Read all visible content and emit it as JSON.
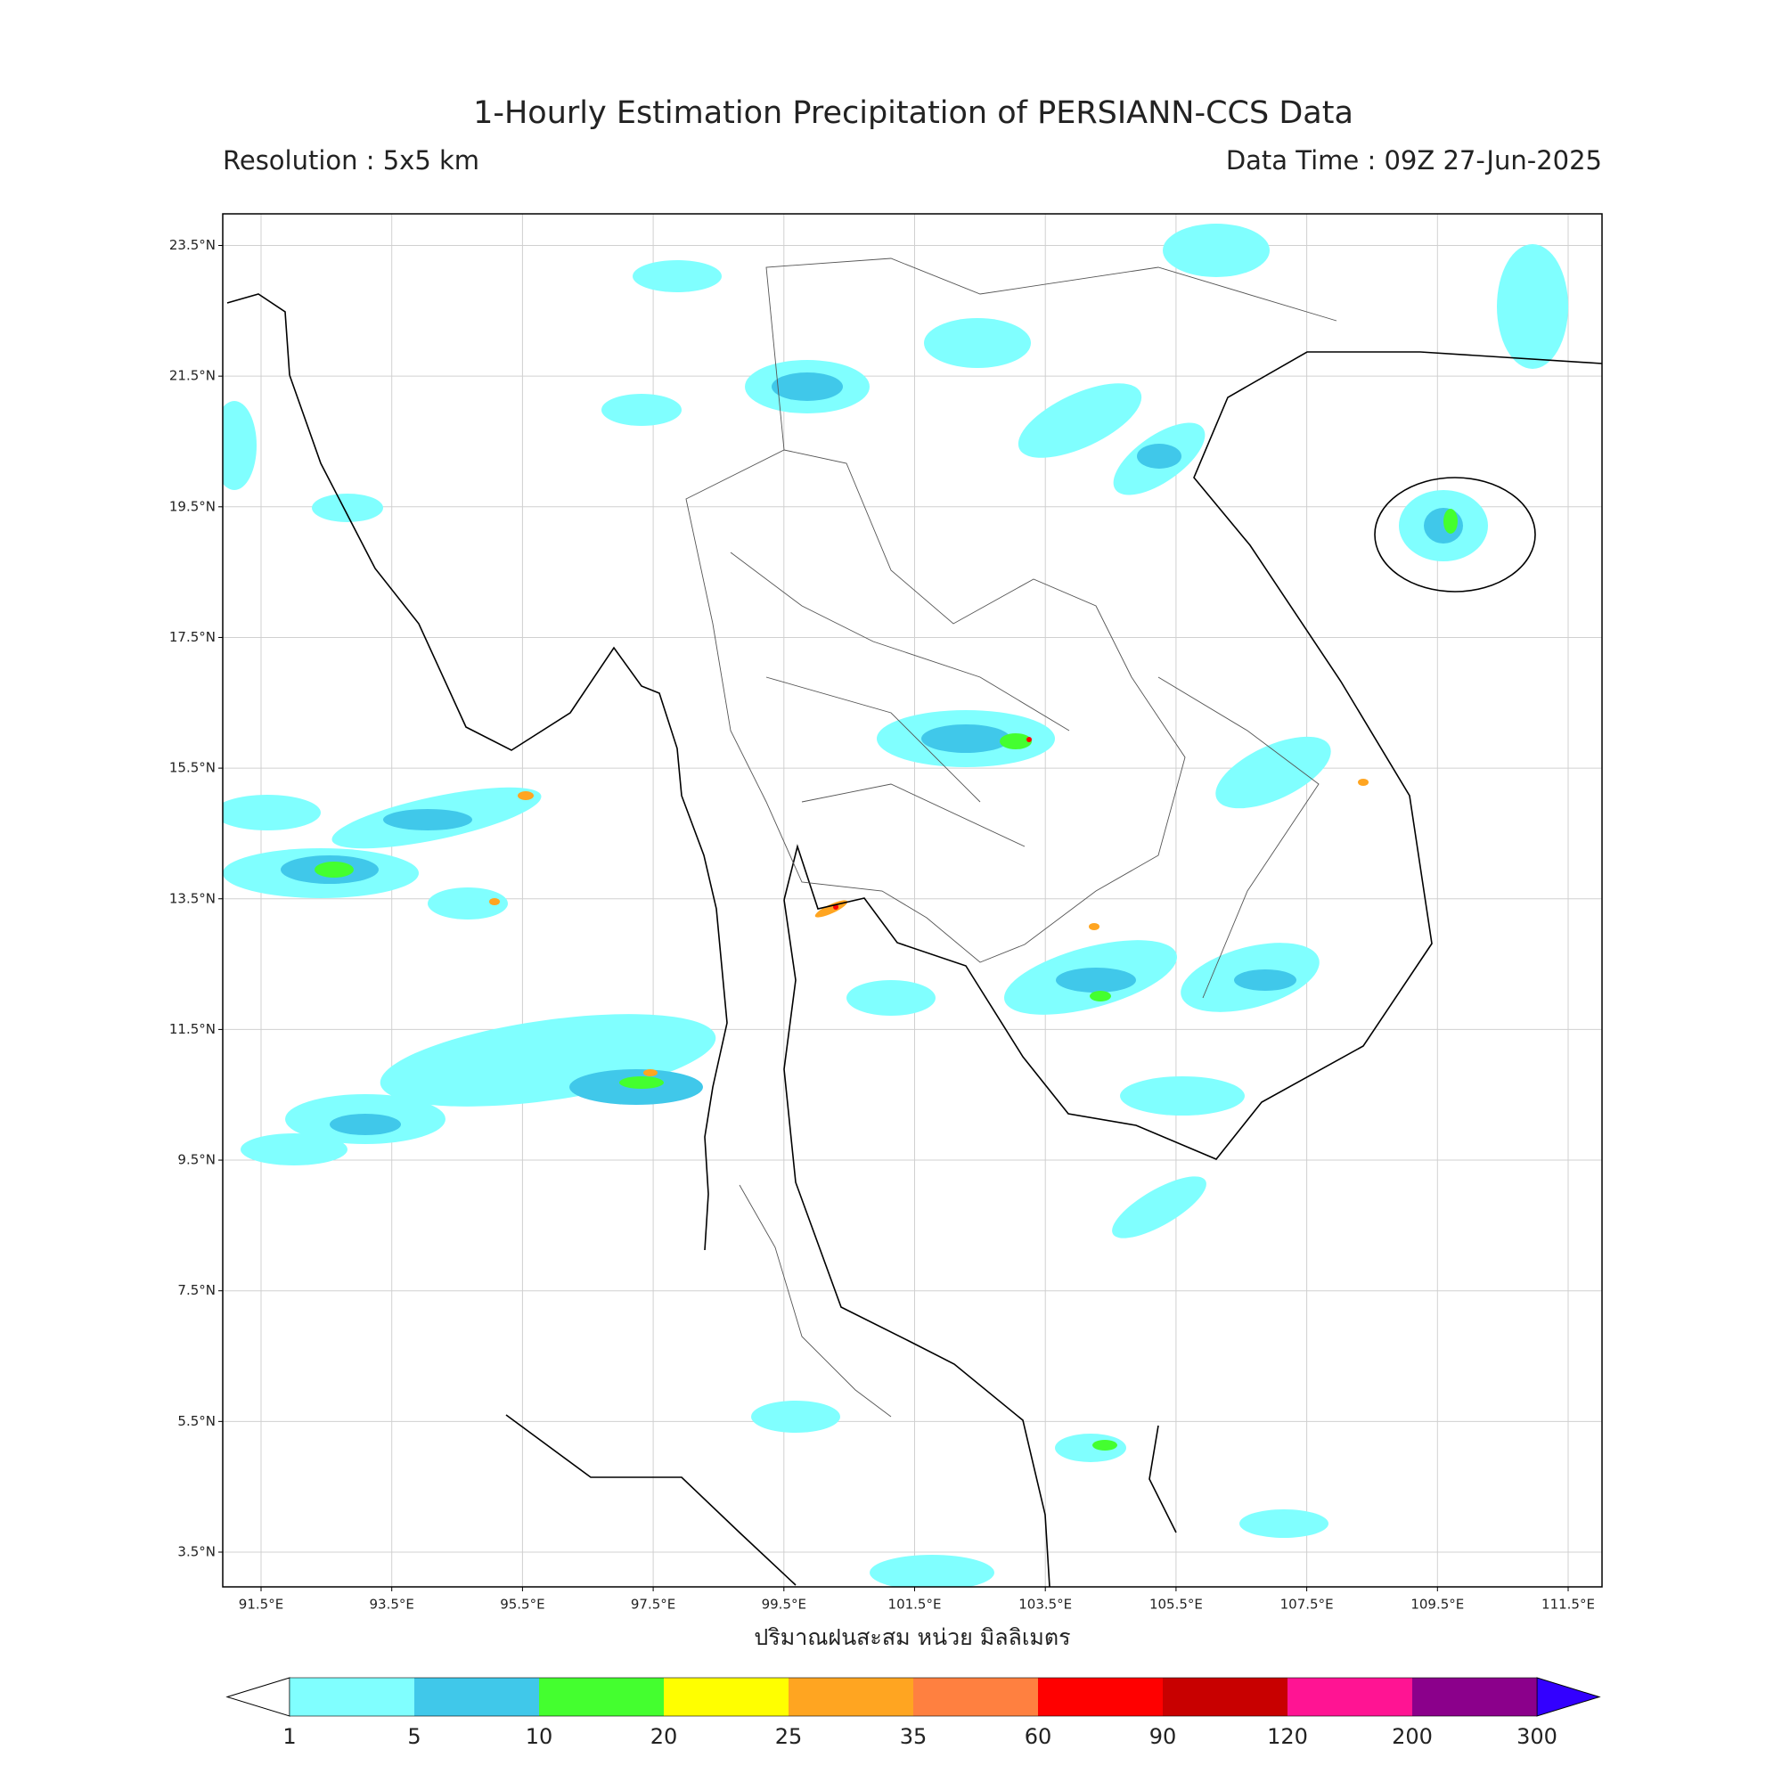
{
  "header": {
    "title": "1-Hourly Estimation Precipitation of PERSIANN-CCS Data",
    "resolution": "Resolution : 5x5 km",
    "data_time": "Data Time : 09Z 27-Jun-2025"
  },
  "map": {
    "lat_labels": [
      "23.5°N",
      "21.5°N",
      "19.5°N",
      "17.5°N",
      "15.5°N",
      "13.5°N",
      "11.5°N",
      "9.5°N",
      "7.5°N",
      "5.5°N",
      "3.5°N"
    ],
    "lon_labels": [
      "91.5°E",
      "93.5°E",
      "95.5°E",
      "97.5°E",
      "99.5°E",
      "101.5°E",
      "103.5°E",
      "105.5°E",
      "107.5°E",
      "109.5°E",
      "111.5°E"
    ],
    "axis_label": "ปริมาณฝนสะสม หน่วย มิลลิเมตร"
  },
  "colorbar": {
    "levels": [
      "1",
      "5",
      "10",
      "20",
      "25",
      "35",
      "60",
      "90",
      "120",
      "200",
      "300"
    ],
    "colors": [
      "#80ffff",
      "#40c8ea",
      "#44ff2f",
      "#ffff00",
      "#ffa521",
      "#ff8040",
      "#ff0000",
      "#c80000",
      "#ff1493",
      "#8b008b"
    ],
    "under_color": "#ffffff",
    "over_color": "#3300ff"
  }
}
